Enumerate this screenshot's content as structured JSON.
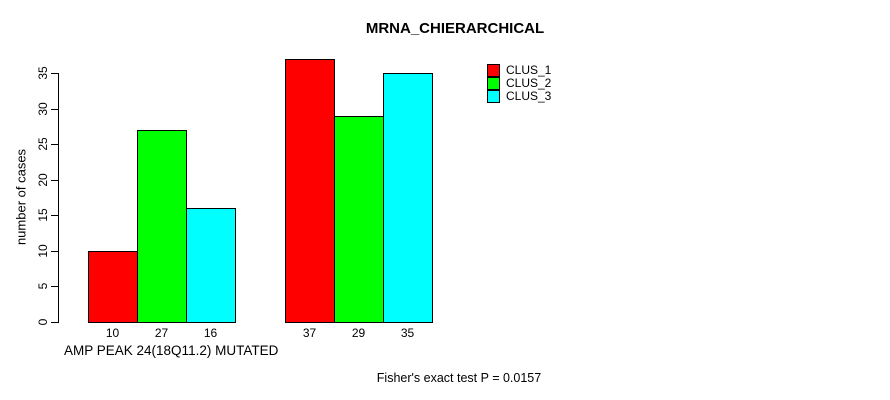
{
  "chart": {
    "title": "MRNA_CHIERARCHICAL",
    "ylabel": "number of cases",
    "xlabel": "AMP PEAK 24(18Q11.2) MUTATED",
    "annotation": "Fisher's exact test P = 0.0157"
  },
  "legend": {
    "items": [
      {
        "label": "CLUS_1",
        "color": "#FF0000"
      },
      {
        "label": "CLUS_2",
        "color": "#00FF00"
      },
      {
        "label": "CLUS_3",
        "color": "#00FFFF"
      }
    ]
  },
  "chart_data": {
    "type": "bar",
    "title": "MRNA_CHIERARCHICAL",
    "xlabel": "AMP PEAK 24(18Q11.2) MUTATED",
    "ylabel": "number of cases",
    "categories": [
      "",
      ""
    ],
    "series": [
      {
        "name": "CLUS_1",
        "color": "#FF0000",
        "values": [
          10,
          37
        ]
      },
      {
        "name": "CLUS_2",
        "color": "#00FF00",
        "values": [
          27,
          29
        ]
      },
      {
        "name": "CLUS_3",
        "color": "#00FFFF",
        "values": [
          16,
          35
        ]
      }
    ],
    "bar_labels": [
      [
        "10",
        "27",
        "16"
      ],
      [
        "37",
        "29",
        "35"
      ]
    ],
    "yticks": [
      0,
      5,
      10,
      15,
      20,
      25,
      30,
      35
    ],
    "ylim": [
      0,
      37
    ],
    "grid": false,
    "legend_position": "top-right",
    "annotation": "Fisher's exact test P = 0.0157",
    "colors": {
      "bar_border": "#000000",
      "axis": "#000000",
      "background": "#FFFFFF"
    }
  }
}
